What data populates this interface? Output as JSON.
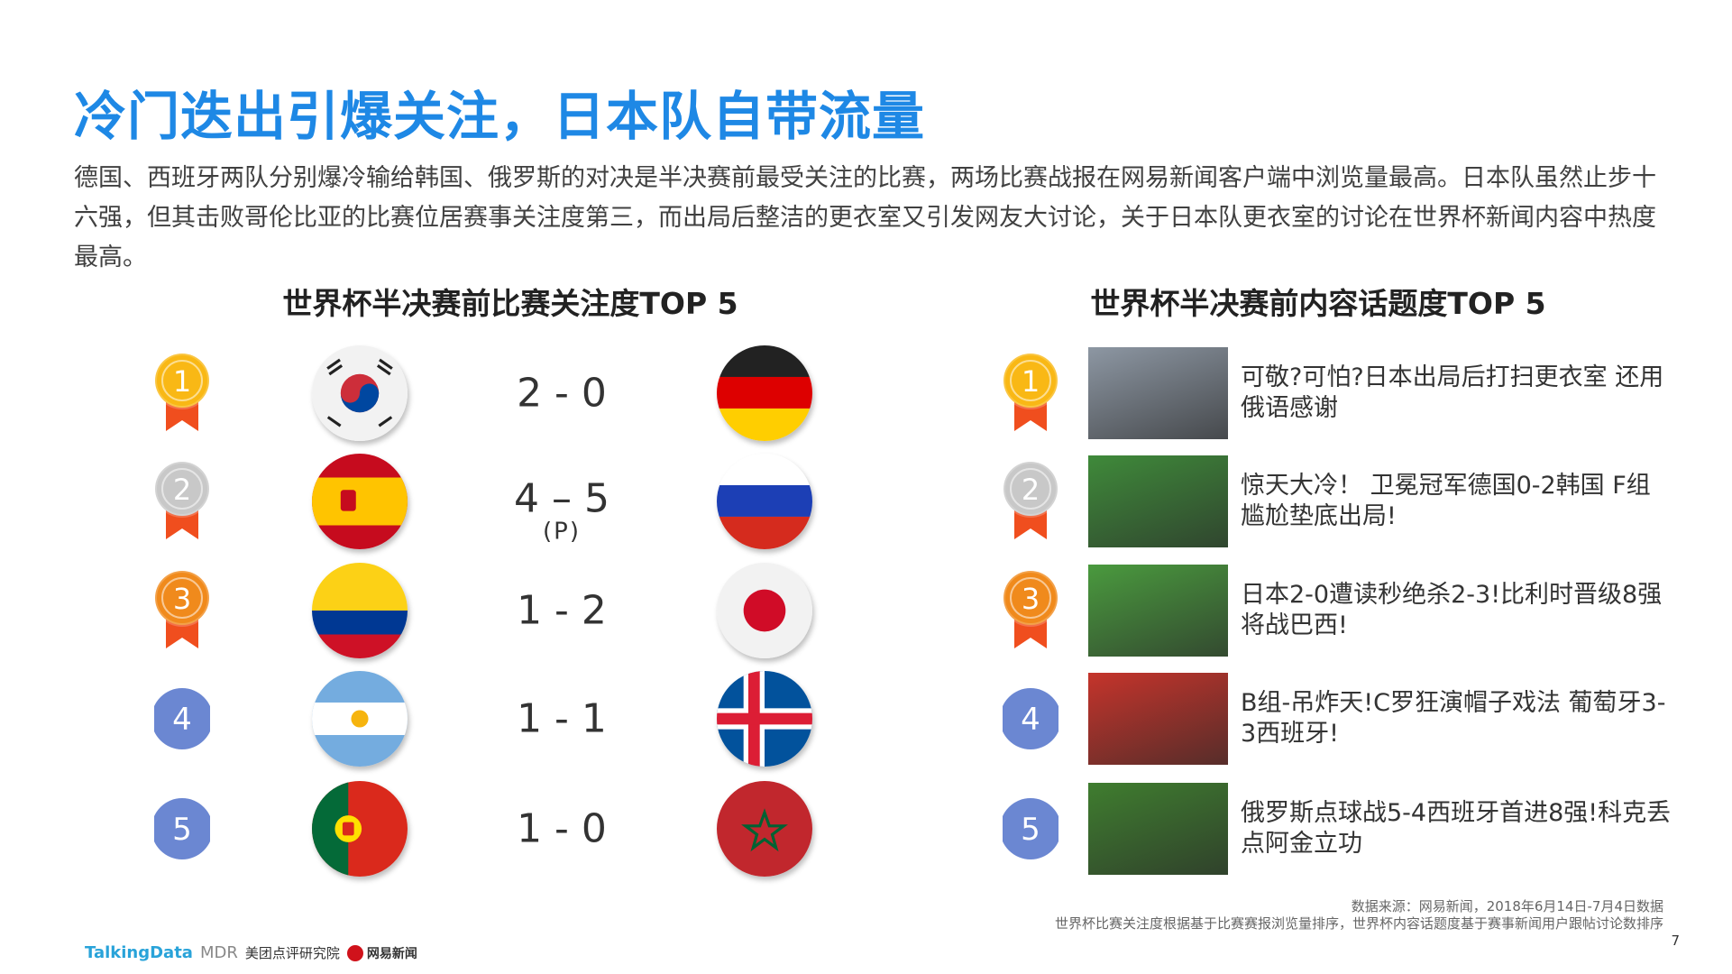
{
  "title": "冷门迭出引爆关注，日本队自带流量",
  "body": "德国、西班牙两队分别爆冷输给韩国、俄罗斯的对决是半决赛前最受关注的比赛，两场比赛战报在网易新闻客户端中浏览量最高。日本队虽然止步十六强，但其击败哥伦比亚的比赛位居赛事关注度第三，而出局后整洁的更衣室又引发网友大讨论，关于日本队更衣室的讨论在世界杯新闻内容中热度最高。",
  "left_heading": "世界杯半决赛前比赛关注度TOP 5",
  "right_heading": "世界杯半决赛前内容话题度TOP 5",
  "matches": [
    {
      "rank": "1",
      "team1": "south-korea",
      "team2": "germany",
      "score": "2 - 0",
      "note": ""
    },
    {
      "rank": "2",
      "team1": "spain",
      "team2": "russia",
      "score": "4 – 5",
      "note": "(P)"
    },
    {
      "rank": "3",
      "team1": "colombia",
      "team2": "japan",
      "score": "1 - 2",
      "note": ""
    },
    {
      "rank": "4",
      "team1": "argentina",
      "team2": "iceland",
      "score": "1 - 1",
      "note": ""
    },
    {
      "rank": "5",
      "team1": "portugal",
      "team2": "morocco",
      "score": "1 - 0",
      "note": ""
    }
  ],
  "topics": [
    {
      "rank": "1",
      "text": "可敬?可怕?日本出局后打扫更衣室 还用俄语感谢"
    },
    {
      "rank": "2",
      "text": "惊天大冷！ 卫冕冠军德国0-2韩国 F组尴尬垫底出局!"
    },
    {
      "rank": "3",
      "text": "日本2-0遭读秒绝杀2-3!比利时晋级8强将战巴西!"
    },
    {
      "rank": "4",
      "text": "B组-吊炸天!C罗狂演帽子戏法 葡萄牙3-3西班牙!"
    },
    {
      "rank": "5",
      "text": "俄罗斯点球战5-4西班牙首进8强!科克丢点阿金立功"
    }
  ],
  "source_line1": "数据来源：网易新闻，2018年6月14日-7月4日数据",
  "source_line2": "世界杯比赛关注度根据基于比赛赛报浏览量排序，世界杯内容话题度基于赛事新闻用户跟帖讨论数排序",
  "page_number": "7",
  "logos": {
    "talkingdata": "TalkingData",
    "mdr": "MDR",
    "meituan": "美团点评研究院",
    "netease": "网易新闻"
  },
  "colors": {
    "title": "#1e88e5",
    "gold": "#f9b815",
    "silver": "#c8c8c8",
    "bronze": "#f08a1c",
    "ribbon": "#f04e1e",
    "blue_rank": "#6b87d2"
  }
}
